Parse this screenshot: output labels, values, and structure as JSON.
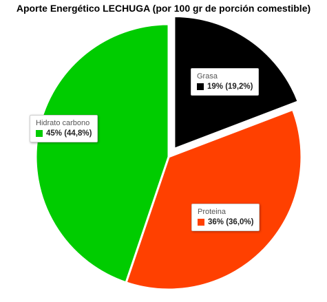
{
  "chart_data": {
    "type": "pie",
    "title": "Aporte Energético LECHUGA (por 100 gr de porción comestible)",
    "slices": [
      {
        "name": "Grasa",
        "value": 19.2,
        "label": "19% (19,2%)",
        "color": "#000000",
        "exploded": true
      },
      {
        "name": "Proteina",
        "value": 36.0,
        "label": "36% (36,0%)",
        "color": "#ff4000",
        "exploded": false
      },
      {
        "name": "Hidrato carbono",
        "value": 44.8,
        "label": "45% (44,8%)",
        "color": "#00cc00",
        "exploded": false
      }
    ]
  }
}
